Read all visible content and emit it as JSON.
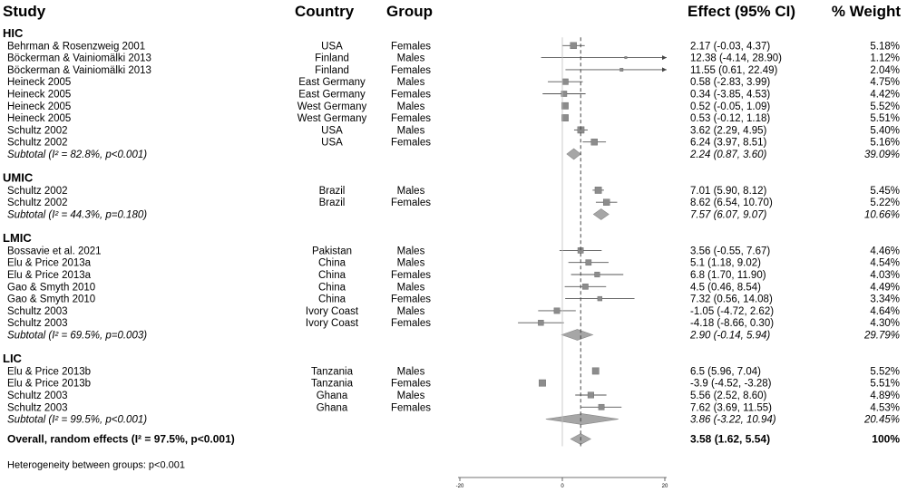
{
  "headers": {
    "study": "Study",
    "country": "Country",
    "group": "Group",
    "effect": "Effect (95% CI)",
    "weight": "% Weight"
  },
  "chart_data": {
    "type": "forest",
    "x_ticks": [
      -20,
      0,
      20
    ],
    "xlim": [
      -20,
      20
    ],
    "overall_line": 3.58,
    "marker_color": "#8c8c8c",
    "sections": [
      {
        "label": "HIC",
        "rows": [
          {
            "study": "Behrman & Rosenzweig 2001",
            "country": "USA",
            "group": "Females",
            "effect_text": "2.17 (-0.03, 4.37)",
            "weight_text": "5.18%",
            "est": 2.17,
            "lo": -0.03,
            "hi": 4.37,
            "w": 5.18
          },
          {
            "study": "Böckerman & Vainiomälki 2013",
            "country": "Finland",
            "group": "Males",
            "effect_text": "12.38 (-4.14, 28.90)",
            "weight_text": "1.12%",
            "est": 12.38,
            "lo": -4.14,
            "hi": 28.9,
            "w": 1.12
          },
          {
            "study": "Böckerman & Vainiomälki 2013",
            "country": "Finland",
            "group": "Females",
            "effect_text": "11.55 (0.61, 22.49)",
            "weight_text": "2.04%",
            "est": 11.55,
            "lo": 0.61,
            "hi": 22.49,
            "w": 2.04
          },
          {
            "study": "Heineck 2005",
            "country": "East Germany",
            "group": "Males",
            "effect_text": "0.58 (-2.83, 3.99)",
            "weight_text": "4.75%",
            "est": 0.58,
            "lo": -2.83,
            "hi": 3.99,
            "w": 4.75
          },
          {
            "study": "Heineck 2005",
            "country": "East Germany",
            "group": "Females",
            "effect_text": "0.34 (-3.85, 4.53)",
            "weight_text": "4.42%",
            "est": 0.34,
            "lo": -3.85,
            "hi": 4.53,
            "w": 4.42
          },
          {
            "study": "Heineck 2005",
            "country": "West Germany",
            "group": "Males",
            "effect_text": "0.52 (-0.05, 1.09)",
            "weight_text": "5.52%",
            "est": 0.52,
            "lo": -0.05,
            "hi": 1.09,
            "w": 5.52
          },
          {
            "study": "Heineck 2005",
            "country": "West Germany",
            "group": "Females",
            "effect_text": "0.53 (-0.12, 1.18)",
            "weight_text": "5.51%",
            "est": 0.53,
            "lo": -0.12,
            "hi": 1.18,
            "w": 5.51
          },
          {
            "study": "Schultz 2002",
            "country": "USA",
            "group": "Males",
            "effect_text": "3.62 (2.29, 4.95)",
            "weight_text": "5.40%",
            "est": 3.62,
            "lo": 2.29,
            "hi": 4.95,
            "w": 5.4
          },
          {
            "study": "Schultz 2002",
            "country": "USA",
            "group": "Females",
            "effect_text": "6.24 (3.97, 8.51)",
            "weight_text": "5.16%",
            "est": 6.24,
            "lo": 3.97,
            "hi": 8.51,
            "w": 5.16
          }
        ],
        "subtotal": {
          "label": "Subtotal (I² = 82.8%, p<0.001)",
          "effect_text": "2.24 (0.87, 3.60)",
          "weight_text": "39.09%",
          "est": 2.24,
          "lo": 0.87,
          "hi": 3.6
        }
      },
      {
        "label": "UMIC",
        "rows": [
          {
            "study": "Schultz 2002",
            "country": "Brazil",
            "group": "Males",
            "effect_text": "7.01 (5.90, 8.12)",
            "weight_text": "5.45%",
            "est": 7.01,
            "lo": 5.9,
            "hi": 8.12,
            "w": 5.45
          },
          {
            "study": "Schultz 2002",
            "country": "Brazil",
            "group": "Females",
            "effect_text": "8.62 (6.54, 10.70)",
            "weight_text": "5.22%",
            "est": 8.62,
            "lo": 6.54,
            "hi": 10.7,
            "w": 5.22
          }
        ],
        "subtotal": {
          "label": "Subtotal (I² = 44.3%, p=0.180)",
          "effect_text": "7.57 (6.07, 9.07)",
          "weight_text": "10.66%",
          "est": 7.57,
          "lo": 6.07,
          "hi": 9.07
        }
      },
      {
        "label": "LMIC",
        "rows": [
          {
            "study": "Bossavie et al. 2021",
            "country": "Pakistan",
            "group": "Males",
            "effect_text": "3.56 (-0.55, 7.67)",
            "weight_text": "4.46%",
            "est": 3.56,
            "lo": -0.55,
            "hi": 7.67,
            "w": 4.46
          },
          {
            "study": "Elu & Price 2013a",
            "country": "China",
            "group": "Males",
            "effect_text": "5.1 (1.18, 9.02)",
            "weight_text": "4.54%",
            "est": 5.1,
            "lo": 1.18,
            "hi": 9.02,
            "w": 4.54
          },
          {
            "study": "Elu & Price 2013a",
            "country": "China",
            "group": "Females",
            "effect_text": "6.8 (1.70, 11.90)",
            "weight_text": "4.03%",
            "est": 6.8,
            "lo": 1.7,
            "hi": 11.9,
            "w": 4.03
          },
          {
            "study": "Gao & Smyth 2010",
            "country": "China",
            "group": "Males",
            "effect_text": "4.5 (0.46, 8.54)",
            "weight_text": "4.49%",
            "est": 4.5,
            "lo": 0.46,
            "hi": 8.54,
            "w": 4.49
          },
          {
            "study": "Gao & Smyth 2010",
            "country": "China",
            "group": "Females",
            "effect_text": "7.32 (0.56, 14.08)",
            "weight_text": "3.34%",
            "est": 7.32,
            "lo": 0.56,
            "hi": 14.08,
            "w": 3.34
          },
          {
            "study": "Schultz 2003",
            "country": "Ivory Coast",
            "group": "Males",
            "effect_text": "-1.05 (-4.72, 2.62)",
            "weight_text": "4.64%",
            "est": -1.05,
            "lo": -4.72,
            "hi": 2.62,
            "w": 4.64
          },
          {
            "study": "Schultz 2003",
            "country": "Ivory Coast",
            "group": "Females",
            "effect_text": "-4.18 (-8.66, 0.30)",
            "weight_text": "4.30%",
            "est": -4.18,
            "lo": -8.66,
            "hi": 0.3,
            "w": 4.3
          }
        ],
        "subtotal": {
          "label": "Subtotal (I² = 69.5%, p=0.003)",
          "effect_text": "2.90 (-0.14, 5.94)",
          "weight_text": "29.79%",
          "est": 2.9,
          "lo": -0.14,
          "hi": 5.94
        }
      },
      {
        "label": "LIC",
        "rows": [
          {
            "study": "Elu & Price 2013b",
            "country": "Tanzania",
            "group": "Males",
            "effect_text": "6.5 (5.96, 7.04)",
            "weight_text": "5.52%",
            "est": 6.5,
            "lo": 5.96,
            "hi": 7.04,
            "w": 5.52
          },
          {
            "study": "Elu & Price 2013b",
            "country": "Tanzania",
            "group": "Females",
            "effect_text": "-3.9 (-4.52, -3.28)",
            "weight_text": "5.51%",
            "est": -3.9,
            "lo": -4.52,
            "hi": -3.28,
            "w": 5.51
          },
          {
            "study": "Schultz 2003",
            "country": "Ghana",
            "group": "Males",
            "effect_text": "5.56 (2.52, 8.60)",
            "weight_text": "4.89%",
            "est": 5.56,
            "lo": 2.52,
            "hi": 8.6,
            "w": 4.89
          },
          {
            "study": "Schultz 2003",
            "country": "Ghana",
            "group": "Females",
            "effect_text": "7.62 (3.69, 11.55)",
            "weight_text": "4.53%",
            "est": 7.62,
            "lo": 3.69,
            "hi": 11.55,
            "w": 4.53
          }
        ],
        "subtotal": {
          "label": "Subtotal (I² = 99.5%, p<0.001)",
          "effect_text": "3.86 (-3.22, 10.94)",
          "weight_text": "20.45%",
          "est": 3.86,
          "lo": -3.22,
          "hi": 10.94
        }
      }
    ],
    "overall": {
      "label": "Overall, random effects (I² = 97.5%, p<0.001)",
      "effect_text": "3.58 (1.62, 5.54)",
      "weight_text": "100%",
      "est": 3.58,
      "lo": 1.62,
      "hi": 5.54
    },
    "heterogeneity_note": "Heterogeneity between groups: p<0.001"
  }
}
